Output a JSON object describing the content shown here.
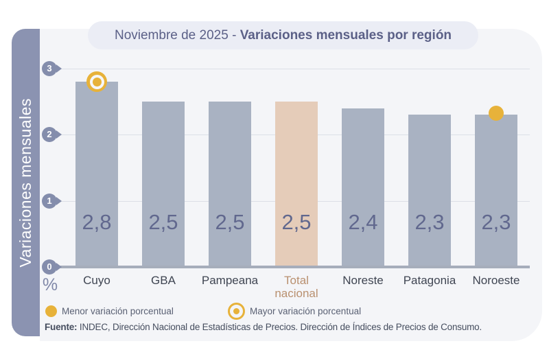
{
  "title": {
    "prefix": "Noviembre de 2025 - ",
    "emphasis": "Variaciones mensuales por región"
  },
  "sidebar": {
    "label": "Variaciones mensuales"
  },
  "chart_data": {
    "type": "bar",
    "categories": [
      "Cuyo",
      "GBA",
      "Pampeana",
      "Total nacional",
      "Noreste",
      "Patagonia",
      "Noroeste"
    ],
    "values": [
      2.8,
      2.5,
      2.5,
      2.5,
      2.4,
      2.3,
      2.3
    ],
    "value_labels": [
      "2,8",
      "2,5",
      "2,5",
      "2,5",
      "2,4",
      "2,3",
      "2,3"
    ],
    "highlight_category": "Total nacional",
    "max_marker_category": "Cuyo",
    "min_marker_category": "Noroeste",
    "title": "Noviembre de 2025 - Variaciones mensuales por región",
    "ylabel": "Variaciones mensuales",
    "y_unit": "%",
    "yticks": [
      0,
      1,
      2,
      3
    ],
    "ylim": [
      0,
      3
    ],
    "grid": true,
    "legend_position": "bottom",
    "bar_color": "#a9b2c2",
    "highlight_bar_color": "#e5ccb9",
    "marker_color": "#e7b23a"
  },
  "legend": [
    {
      "marker": "solid-dot",
      "label": "Menor variación porcentual"
    },
    {
      "marker": "ring-dot",
      "label": "Mayor variación porcentual"
    }
  ],
  "footer": {
    "source_label": "Fuente:",
    "source_text": " INDEC, Dirección Nacional de Estadísticas de Precios. Dirección de Índices de Precios de Consumo."
  }
}
